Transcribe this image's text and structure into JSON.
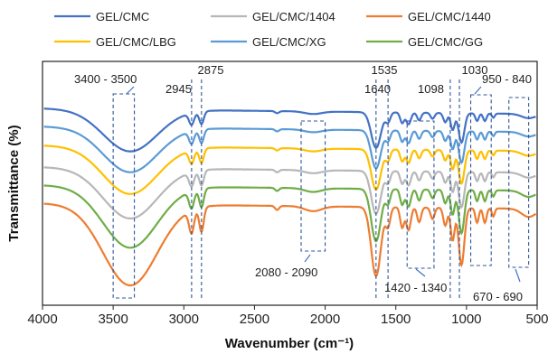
{
  "chart_data": {
    "type": "line",
    "title": "",
    "xlabel": "Wavenumber (cm⁻¹)",
    "ylabel": "Transmittance (%)",
    "xlim": [
      4000,
      500
    ],
    "x_reversed": true,
    "x_ticks": [
      4000,
      3500,
      3000,
      2500,
      2000,
      1500,
      1000,
      500
    ],
    "y_ticks_shown": false,
    "grid": false,
    "legend_position": "top",
    "series": [
      {
        "name": "GEL/CMC",
        "color": "#4472c4",
        "offset": 0,
        "depth": 0.75
      },
      {
        "name": "GEL/CMC/1404",
        "color": "#b7b7b7",
        "offset": 65,
        "depth": 0.9
      },
      {
        "name": "GEL/CMC/1440",
        "color": "#ed7d31",
        "offset": 105,
        "depth": 1.45
      },
      {
        "name": "GEL/CMC/LBG",
        "color": "#ffc000",
        "offset": 41,
        "depth": 0.85
      },
      {
        "name": "GEL/CMC/XG",
        "color": "#5b9bd5",
        "offset": 20,
        "depth": 0.8
      },
      {
        "name": "GEL/CMC/GG",
        "color": "#70ad47",
        "offset": 85,
        "depth": 1.1
      }
    ],
    "annotations": [
      {
        "text": "3400 - 3500",
        "from": 3500,
        "to": 3350,
        "kind": "box"
      },
      {
        "text": "2945",
        "at": 2945,
        "kind": "line"
      },
      {
        "text": "2875",
        "at": 2875,
        "kind": "line"
      },
      {
        "text": "2080 - 2090",
        "from": 2170,
        "to": 2000,
        "kind": "box"
      },
      {
        "text": "1640",
        "at": 1640,
        "kind": "line"
      },
      {
        "text": "1535",
        "at": 1555,
        "kind": "line"
      },
      {
        "text": "1420 - 1340",
        "from": 1420,
        "to": 1230,
        "kind": "box"
      },
      {
        "text": "1098",
        "at": 1115,
        "kind": "line"
      },
      {
        "text": "1030",
        "at": 1050,
        "kind": "line"
      },
      {
        "text": "950 - 840",
        "from": 970,
        "to": 825,
        "kind": "box"
      },
      {
        "text": "670 - 690",
        "from": 700,
        "to": 560,
        "kind": "box"
      }
    ]
  }
}
